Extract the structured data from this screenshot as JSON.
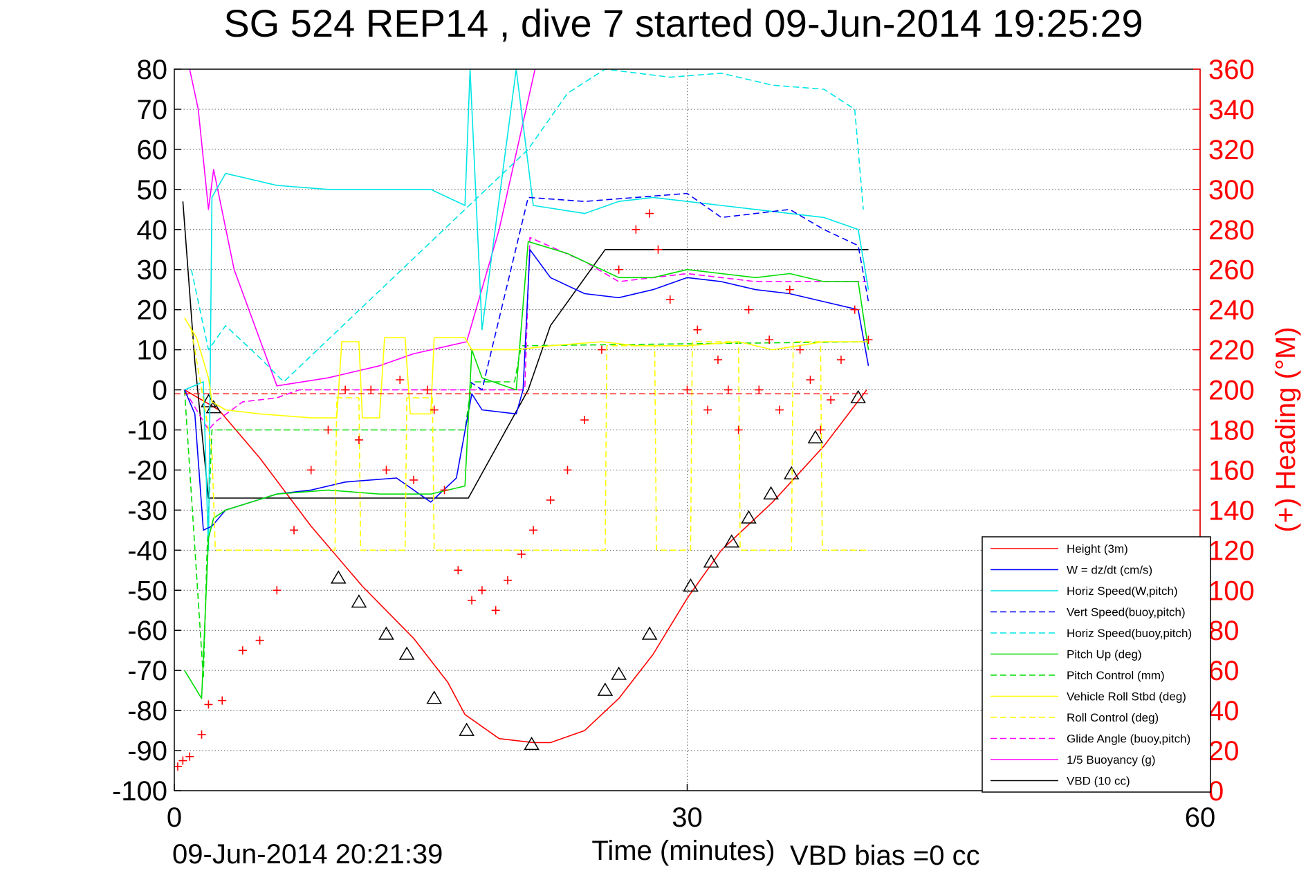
{
  "chart_data": {
    "type": "line",
    "title": "SG 524   REP14  , dive 7 started 09-Jun-2014 19:25:29",
    "xlabel": "Time (minutes)",
    "ylabel_right": "(+) Heading (°M)",
    "footer_left": "09-Jun-2014 20:21:39",
    "footer_right": "VBD bias =0 cc",
    "xlim": [
      0,
      60
    ],
    "ylim": [
      -100,
      80
    ],
    "ylim_right": [
      0,
      360
    ],
    "xticks": [
      "0",
      "30",
      "60"
    ],
    "yticks": [
      "80",
      "70",
      "60",
      "50",
      "40",
      "30",
      "20",
      "10",
      "0",
      "-10",
      "-20",
      "-30",
      "-40",
      "-50",
      "-60",
      "-70",
      "-80",
      "-90",
      "-100"
    ],
    "yticks_right": [
      "360",
      "340",
      "320",
      "300",
      "280",
      "260",
      "240",
      "220",
      "200",
      "180",
      "160",
      "140",
      "120",
      "100",
      "80",
      "60",
      "40",
      "20",
      "0"
    ],
    "grid": "dotted",
    "legend_position": "bottom-right",
    "colors": {
      "red": "#ff0000",
      "blue": "#0000ff",
      "cyan": "#00e5e5",
      "green": "#00dd00",
      "yellow": "#ffff00",
      "magenta": "#ff00ff",
      "black": "#000000"
    },
    "legend": [
      {
        "name": "Height (3m)",
        "color": "#ff0000",
        "dash": false
      },
      {
        "name": "W = dz/dt (cm/s)",
        "color": "#0000ff",
        "dash": false
      },
      {
        "name": "Horiz Speed(W,pitch)",
        "color": "#00e5e5",
        "dash": false
      },
      {
        "name": "Vert Speed(buoy,pitch)",
        "color": "#0000ff",
        "dash": true
      },
      {
        "name": "Horiz Speed(buoy,pitch)",
        "color": "#00e5e5",
        "dash": true
      },
      {
        "name": "Pitch Up (deg)",
        "color": "#00dd00",
        "dash": false
      },
      {
        "name": "Pitch Control (mm)",
        "color": "#00dd00",
        "dash": true
      },
      {
        "name": "Vehicle Roll Stbd (deg)",
        "color": "#ffff00",
        "dash": false
      },
      {
        "name": "Roll Control (deg)",
        "color": "#ffff00",
        "dash": true
      },
      {
        "name": "Glide Angle (buoy,pitch)",
        "color": "#ff00ff",
        "dash": true
      },
      {
        "name": "1/5 Buoyancy (g)",
        "color": "#ff00ff",
        "dash": false
      },
      {
        "name": "VBD (10 cc)",
        "color": "#000000",
        "dash": false
      }
    ],
    "series": [
      {
        "name": "Height (3m)",
        "axis": "left",
        "x": [
          0.6,
          2.6,
          5,
          8,
          11,
          14,
          16,
          17,
          19,
          21,
          22,
          24,
          26,
          28,
          30,
          32,
          35,
          38,
          40.5
        ],
        "y": [
          0,
          -5,
          -17,
          -34,
          -49,
          -62,
          -73,
          -81,
          -87,
          -88,
          -88,
          -85,
          -77,
          -66,
          -52,
          -40,
          -28,
          -14,
          0
        ]
      },
      {
        "name": "Height markers",
        "axis": "left",
        "x": [
          2.0,
          2.3,
          9.6,
          10.8,
          12.4,
          13.6,
          15.2,
          17.1,
          20.9,
          25.2,
          26.0,
          27.8,
          30.2,
          31.4,
          32.6,
          33.6,
          34.9,
          36.1,
          37.5,
          40.0
        ],
        "y": [
          -3,
          -4.5,
          -47,
          -53,
          -61,
          -66,
          -77,
          -85,
          -88.5,
          -75,
          -71,
          -61,
          -49,
          -43,
          -38,
          -32,
          -26,
          -21,
          -12,
          -2
        ]
      },
      {
        "name": "VBD (10 cc)",
        "axis": "left",
        "x": [
          0.5,
          1.2,
          2.0,
          2.1,
          8,
          17.0,
          17.2,
          20.7,
          22,
          25.2,
          40.6
        ],
        "y": [
          47,
          7,
          -27,
          -27,
          -27,
          -27,
          -27,
          0,
          16,
          35,
          35
        ]
      },
      {
        "name": "Pitch Control (mm)",
        "axis": "left",
        "x": [
          0.6,
          1.7,
          1.9,
          2.2,
          5.0,
          17.0,
          17.4,
          19.9,
          20.3,
          40.6
        ],
        "y": [
          0,
          -72,
          -42,
          -10,
          -10,
          -10,
          2,
          2,
          11,
          12
        ]
      },
      {
        "name": "Glide Angle (buoy,pitch)",
        "axis": "left",
        "x": [
          0.6,
          2.0,
          2.4,
          4,
          6,
          7.3,
          20.5,
          20.8,
          24,
          26,
          28,
          30,
          32,
          34,
          36,
          38,
          40.5
        ],
        "y": [
          0,
          -10,
          -8,
          -3,
          -2,
          0,
          0,
          38,
          32,
          27,
          28,
          29,
          28,
          27,
          27,
          27,
          27
        ]
      },
      {
        "name": "1/5 Buoyancy (g)",
        "axis": "left",
        "x": [
          0.9,
          1.4,
          2.0,
          2.3,
          3.5,
          6,
          9,
          12,
          14,
          17.1,
          19,
          21.1
        ],
        "y": [
          80,
          70,
          45,
          55,
          30,
          1,
          3,
          6,
          9,
          12,
          40,
          80
        ]
      },
      {
        "name": "Horiz Speed(W,pitch)",
        "axis": "left",
        "x": [
          0.6,
          1.7,
          2.0,
          2.2,
          3,
          6,
          9,
          12,
          15,
          17,
          17.3,
          18,
          20,
          21,
          24,
          26,
          28,
          30,
          32,
          34,
          36,
          38,
          40,
          40.6
        ],
        "y": [
          0,
          2,
          -40,
          48,
          54,
          51,
          50,
          50,
          50,
          46,
          80,
          15,
          80,
          46,
          44,
          47,
          48,
          47,
          46,
          45,
          44,
          43,
          40,
          25
        ]
      },
      {
        "name": "Horiz Speed(buoy,pitch)",
        "axis": "left",
        "x": [
          1.0,
          2.0,
          3,
          5,
          6.4,
          20.7,
          23,
          25.2,
          29,
          32,
          35,
          38,
          39.8,
          40.3
        ],
        "y": [
          30,
          10,
          16,
          8,
          2,
          60,
          74,
          80,
          78,
          79,
          76,
          75,
          70,
          45
        ]
      },
      {
        "name": "W = dz/dt (cm/s)",
        "axis": "left",
        "x": [
          0.6,
          1.2,
          1.7,
          2.2,
          3,
          6,
          8,
          10,
          13,
          15,
          16.5,
          17.4,
          18,
          20,
          20.4,
          20.8,
          22,
          24,
          26,
          28,
          30,
          32,
          34,
          36,
          38,
          40,
          40.6
        ],
        "y": [
          0,
          -6,
          -35,
          -34,
          -30,
          -26,
          -25,
          -23,
          -22,
          -28,
          -22,
          -1,
          -5,
          -6,
          0,
          35,
          28,
          24,
          23,
          25,
          28,
          27,
          25,
          24,
          22,
          20,
          6
        ]
      },
      {
        "name": "Vert Speed(buoy,pitch)",
        "axis": "left",
        "x": [
          17.3,
          18,
          20.7,
          24,
          27,
          30,
          32,
          34,
          36,
          38,
          40,
          40.6
        ],
        "y": [
          2,
          0,
          48,
          47,
          48,
          49,
          43,
          44,
          45,
          40,
          36,
          22
        ]
      },
      {
        "name": "Pitch Up (deg)",
        "axis": "left",
        "x": [
          0.6,
          1.6,
          2.0,
          2.3,
          3,
          6,
          9,
          12,
          15,
          17,
          17.4,
          18,
          20,
          20.7,
          23,
          26,
          28,
          30,
          32,
          34,
          36,
          38,
          40,
          40.6
        ],
        "y": [
          -70,
          -77,
          -37,
          -32,
          -30,
          -26,
          -25,
          -26,
          -26,
          -24,
          10,
          3,
          0,
          37,
          34,
          28,
          28,
          30,
          29,
          28,
          29,
          27,
          27,
          10
        ]
      },
      {
        "name": "Vehicle Roll Stbd (deg)",
        "axis": "left",
        "x": [
          0.6,
          1.3,
          2.0,
          2.2,
          3.0,
          5,
          8,
          9.5,
          9.8,
          10.8,
          11,
          12,
          12.3,
          13.5,
          13.8,
          15,
          15.2,
          17,
          17.4,
          20,
          22,
          25,
          27,
          30,
          33,
          35,
          38,
          40.6
        ],
        "y": [
          18,
          13,
          3,
          -3,
          -5,
          -6,
          -7,
          -7,
          12,
          12,
          -7,
          -7,
          13,
          13,
          -6,
          -6,
          13,
          13,
          10,
          10,
          11,
          12,
          11,
          11,
          12,
          10,
          12,
          12
        ]
      },
      {
        "name": "Roll Control (deg)",
        "axis": "left",
        "x": [
          1.0,
          2.2,
          2.4,
          6.2,
          6.3,
          9.4,
          9.5,
          10.8,
          10.9,
          13.5,
          13.6,
          15.1,
          15.2,
          25.2,
          25.3,
          28.1,
          28.2,
          30.2,
          30.3,
          33.0,
          33.1,
          36.1,
          36.2,
          37.8,
          37.9,
          40.6
        ],
        "y": [
          15,
          -15,
          -40,
          -40,
          -40,
          -40,
          -2,
          -2,
          -40,
          -40,
          -2,
          -2,
          -40,
          -40,
          11,
          11,
          -40,
          -40,
          12,
          12,
          -40,
          -40,
          12,
          12,
          -40,
          -40
        ]
      },
      {
        "name": "Heading",
        "axis": "right",
        "x": [
          0.2,
          0.5,
          0.9,
          1.6,
          2.0,
          2.8,
          4,
          5,
          6,
          7,
          8,
          9,
          10,
          10.8,
          11.5,
          12.4,
          13.2,
          14,
          14.8,
          15.2,
          15.8,
          16.6,
          17.4,
          18.0,
          18.8,
          19.5,
          20.3,
          21,
          22,
          23,
          24,
          25,
          26,
          27,
          27.8,
          28.3,
          29,
          30,
          30.6,
          31.2,
          31.8,
          32.4,
          33.0,
          33.6,
          34.2,
          34.8,
          35.4,
          36.0,
          36.6,
          37.2,
          37.8,
          38.4,
          39.0,
          39.8,
          40.6
        ],
        "y": [
          12,
          15,
          17,
          28,
          43,
          45,
          70,
          75,
          100,
          130,
          160,
          180,
          200,
          175,
          200,
          160,
          205,
          155,
          200,
          190,
          150,
          110,
          95,
          100,
          90,
          105,
          118,
          130,
          145,
          160,
          185,
          220,
          260,
          280,
          288,
          270,
          245,
          200,
          230,
          190,
          215,
          200,
          180,
          240,
          200,
          225,
          190,
          250,
          220,
          205,
          180,
          195,
          215,
          240,
          225
        ]
      }
    ]
  }
}
